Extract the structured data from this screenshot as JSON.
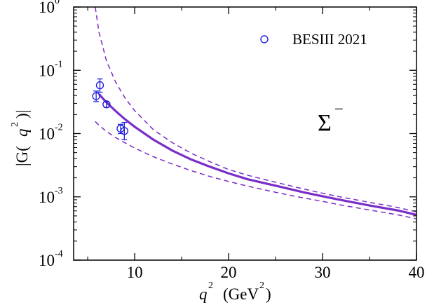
{
  "chart_data": {
    "type": "scatter",
    "title": "",
    "xlabel": {
      "var": "q",
      "exp": "2",
      "unit_pre": "(GeV",
      "unit_exp": "2",
      "unit_post": ")"
    },
    "ylabel": {
      "pre": "|G(",
      "var": "q",
      "exp": "2",
      "post": ")|"
    },
    "xlim": [
      3.5,
      40
    ],
    "ylim_log10": [
      -4,
      0
    ],
    "xticks": [
      10,
      20,
      30,
      40
    ],
    "xtick_labels": [
      "10",
      "20",
      "30",
      "40"
    ],
    "yticks": [
      {
        "base": "10",
        "exp": "-4",
        "value": 0.0001
      },
      {
        "base": "10",
        "exp": "-3",
        "value": 0.001
      },
      {
        "base": "10",
        "exp": "-2",
        "value": 0.01
      },
      {
        "base": "10",
        "exp": "-1",
        "value": 0.1
      },
      {
        "base": "10",
        "exp": "0",
        "value": 1
      }
    ],
    "annotation": {
      "symbol": "Σ",
      "superscript": "−"
    },
    "legend": {
      "label": "BESIII 2021",
      "position": "top-right",
      "marker": "open-circle"
    },
    "colors": {
      "data": "#2222dd",
      "curve": "#7a2ec8"
    },
    "series": [
      {
        "name": "BESIII 2021",
        "kind": "points",
        "points": [
          {
            "x": 5.9,
            "y": 0.039,
            "ylo": 0.032,
            "yhi": 0.047
          },
          {
            "x": 6.3,
            "y": 0.058,
            "ylo": 0.045,
            "yhi": 0.073
          },
          {
            "x": 7.0,
            "y": 0.029,
            "ylo": 0.026,
            "yhi": 0.032
          },
          {
            "x": 8.5,
            "y": 0.012,
            "ylo": 0.01,
            "yhi": 0.014
          },
          {
            "x": 8.9,
            "y": 0.011,
            "ylo": 0.008,
            "yhi": 0.015
          }
        ]
      },
      {
        "name": "central fit",
        "kind": "line",
        "style": "solid",
        "x": [
          6.2,
          7,
          8,
          9,
          10,
          12,
          14,
          16,
          18,
          20,
          22,
          25,
          28,
          30,
          32,
          35,
          38,
          40
        ],
        "y": [
          0.042,
          0.031,
          0.0225,
          0.0167,
          0.0128,
          0.008,
          0.0054,
          0.0039,
          0.003,
          0.00235,
          0.0019,
          0.0015,
          0.00118,
          0.00102,
          0.00089,
          0.00073,
          0.00061,
          0.00052
        ]
      },
      {
        "name": "upper band",
        "kind": "line",
        "style": "dashed",
        "x": [
          5.8,
          6.2,
          7,
          8,
          9,
          10,
          12,
          14,
          16,
          18,
          20,
          22,
          25,
          28,
          30,
          32,
          35,
          38,
          40
        ],
        "y": [
          1.0,
          0.4,
          0.14,
          0.064,
          0.036,
          0.023,
          0.0115,
          0.0072,
          0.0049,
          0.0036,
          0.0027,
          0.0022,
          0.0017,
          0.00133,
          0.00114,
          0.00099,
          0.00082,
          0.00068,
          0.00058
        ]
      },
      {
        "name": "lower band",
        "kind": "line",
        "style": "dashed",
        "x": [
          5.8,
          6.2,
          7,
          8,
          9,
          10,
          12,
          14,
          16,
          18,
          20,
          22,
          25,
          28,
          30,
          32,
          35,
          38,
          40
        ],
        "y": [
          0.0155,
          0.0135,
          0.0108,
          0.0086,
          0.0071,
          0.0059,
          0.0043,
          0.0033,
          0.0026,
          0.0021,
          0.00175,
          0.00148,
          0.00118,
          0.00096,
          0.00085,
          0.00074,
          0.00062,
          0.00052,
          0.00045
        ]
      }
    ]
  }
}
